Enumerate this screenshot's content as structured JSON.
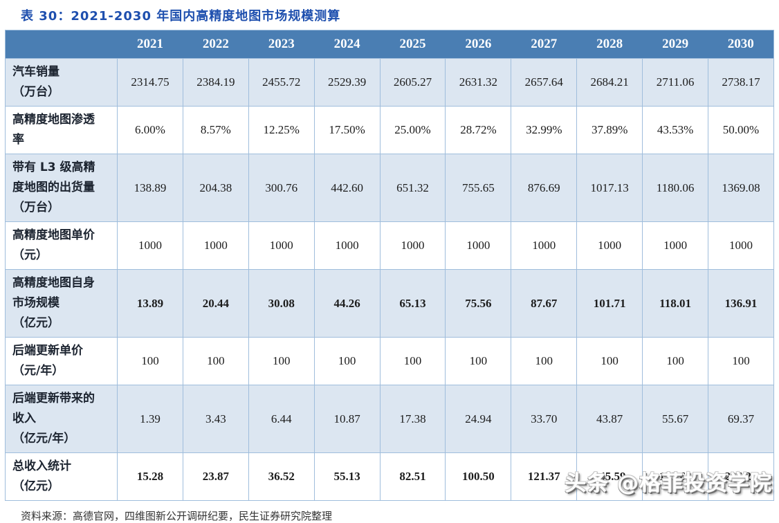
{
  "page": {
    "title": "表 30：2021-2030 年国内高精度地图市场规模测算",
    "source_note": "资料来源：高德官网，四维图新公开调研纪要，民生证券研究院整理",
    "watermark": "头条 @格菲投资学院"
  },
  "colors": {
    "header_bg": "#4a7eb3",
    "header_text": "#ffffff",
    "shaded_row_bg": "#dce6f1",
    "white_row_bg": "#ffffff",
    "border": "#9fbddc",
    "title_color": "#1e4fae"
  },
  "chart_data": {
    "type": "table",
    "title": "表 30：2021-2030 年国内高精度地图市场规模测算",
    "columns": [
      "2021",
      "2022",
      "2023",
      "2024",
      "2025",
      "2026",
      "2027",
      "2028",
      "2029",
      "2030"
    ],
    "rows": [
      {
        "label": "汽车销量\n（万台）",
        "values": [
          "2314.75",
          "2384.19",
          "2455.72",
          "2529.39",
          "2605.27",
          "2631.32",
          "2657.64",
          "2684.21",
          "2711.06",
          "2738.17"
        ],
        "bold_values": false
      },
      {
        "label": "高精度地图渗透\n率",
        "values": [
          "6.00%",
          "8.57%",
          "12.25%",
          "17.50%",
          "25.00%",
          "28.72%",
          "32.99%",
          "37.89%",
          "43.53%",
          "50.00%"
        ],
        "bold_values": false
      },
      {
        "label": "带有 L3 级高精\n度地图的出货量\n（万台）",
        "values": [
          "138.89",
          "204.38",
          "300.76",
          "442.60",
          "651.32",
          "755.65",
          "876.69",
          "1017.13",
          "1180.06",
          "1369.08"
        ],
        "bold_values": false
      },
      {
        "label": "高精度地图单价\n（元）",
        "values": [
          "1000",
          "1000",
          "1000",
          "1000",
          "1000",
          "1000",
          "1000",
          "1000",
          "1000",
          "1000"
        ],
        "bold_values": false
      },
      {
        "label": "高精度地图自身\n市场规模\n（亿元）",
        "values": [
          "13.89",
          "20.44",
          "30.08",
          "44.26",
          "65.13",
          "75.56",
          "87.67",
          "101.71",
          "118.01",
          "136.91"
        ],
        "bold_values": true
      },
      {
        "label": "后端更新单价\n（元/年）",
        "values": [
          "100",
          "100",
          "100",
          "100",
          "100",
          "100",
          "100",
          "100",
          "100",
          "100"
        ],
        "bold_values": false
      },
      {
        "label": "后端更新带来的\n收入\n（亿元/年）",
        "values": [
          "1.39",
          "3.43",
          "6.44",
          "10.87",
          "17.38",
          "24.94",
          "33.70",
          "43.87",
          "55.67",
          "69.37"
        ],
        "bold_values": false
      },
      {
        "label": "总收入统计\n（亿元）",
        "values": [
          "15.28",
          "23.87",
          "36.52",
          "55.13",
          "82.51",
          "100.50",
          "121.37",
          "145.59",
          "173.68",
          "206.27"
        ],
        "bold_values": true
      }
    ]
  }
}
